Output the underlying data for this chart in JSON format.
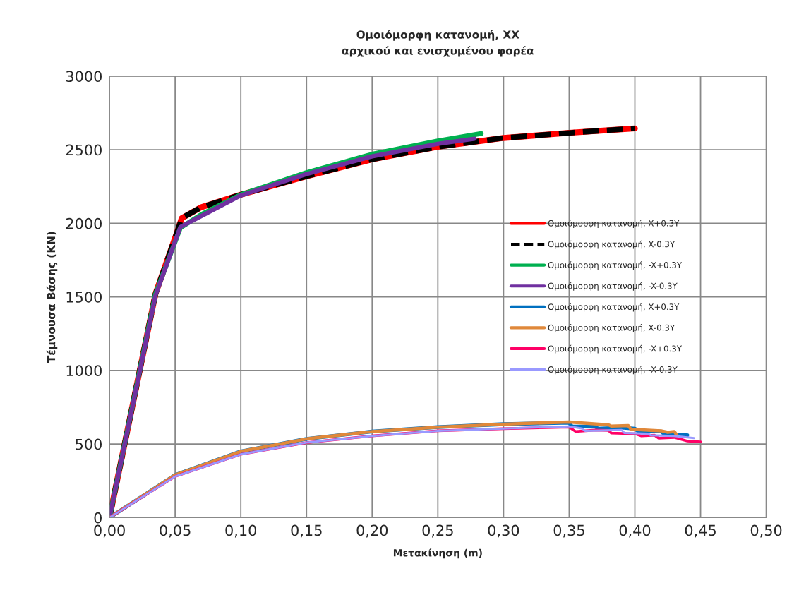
{
  "chart_data": {
    "type": "line",
    "title": "Ομοιόμορφη κατανομή, XX\nαρχικού και ενισχυμένου φορέα",
    "xlabel": "Μετακίνηση (m)",
    "ylabel": "Τέμνουσα Βάσης (KN)",
    "xlim": [
      0,
      0.5
    ],
    "xticks": [
      {
        "value": 0,
        "label": "0,00"
      },
      {
        "value": 0.05,
        "label": "0,05"
      },
      {
        "value": 0.1,
        "label": "0,10"
      },
      {
        "value": 0.15,
        "label": "0,15"
      },
      {
        "value": 0.2,
        "label": "0,20"
      },
      {
        "value": 0.25,
        "label": "0,25"
      },
      {
        "value": 0.3,
        "label": "0,30"
      },
      {
        "value": 0.35,
        "label": "0,35"
      },
      {
        "value": 0.4,
        "label": "0,40"
      },
      {
        "value": 0.45,
        "label": "0,45"
      },
      {
        "value": 0.5,
        "label": "0,50"
      }
    ],
    "ylim": [
      0,
      3000
    ],
    "yticks": [
      0,
      500,
      1000,
      1500,
      2000,
      2500,
      3000
    ],
    "grid": true,
    "legend": "right",
    "marker": "none",
    "series": [
      {
        "name": "Ομοιόμορφη κατανομή, X+0.3Y",
        "color": "#ff0000",
        "line_style": "solid",
        "x": [
          0,
          0.035,
          0.053,
          0.055,
          0.07,
          0.1,
          0.15,
          0.2,
          0.25,
          0.3,
          0.35,
          0.4
        ],
        "values": [
          0,
          1520,
          1980,
          2035,
          2110,
          2195,
          2320,
          2435,
          2520,
          2580,
          2615,
          2645
        ]
      },
      {
        "name": "Ομοιόμορφη κατανομή, X-0.3Y",
        "color": "#000000",
        "line_style": "dashed",
        "x": [
          0,
          0.035,
          0.053,
          0.055,
          0.07,
          0.1,
          0.15,
          0.2,
          0.25,
          0.3,
          0.35,
          0.4
        ],
        "values": [
          0,
          1520,
          1980,
          2035,
          2110,
          2195,
          2320,
          2435,
          2520,
          2580,
          2615,
          2645
        ]
      },
      {
        "name": "Ομοιόμορφη κατανομή, -X+0.3Y",
        "color": "#00b050",
        "line_style": "solid",
        "x": [
          0,
          0.035,
          0.054,
          0.07,
          0.1,
          0.15,
          0.2,
          0.25,
          0.283
        ],
        "values": [
          0,
          1520,
          1970,
          2060,
          2195,
          2345,
          2470,
          2560,
          2610
        ]
      },
      {
        "name": "Ομοιόμορφη κατανομή, -X-0.3Y",
        "color": "#7030a0",
        "line_style": "solid",
        "x": [
          0,
          0.035,
          0.054,
          0.07,
          0.1,
          0.15,
          0.2,
          0.25,
          0.278
        ],
        "values": [
          0,
          1510,
          1975,
          2050,
          2190,
          2335,
          2455,
          2540,
          2575
        ]
      },
      {
        "name": "Ομοιόμορφη κατανομή, X+0.3Y",
        "color": "#0070c0",
        "line_style": "solid",
        "x": [
          0,
          0.05,
          0.1,
          0.15,
          0.2,
          0.25,
          0.3,
          0.35,
          0.352,
          0.37,
          0.372,
          0.39,
          0.4,
          0.402,
          0.42,
          0.422,
          0.44
        ],
        "values": [
          0,
          290,
          450,
          535,
          585,
          615,
          635,
          645,
          620,
          618,
          605,
          612,
          605,
          590,
          585,
          570,
          560
        ]
      },
      {
        "name": "Ομοιόμορφη κατανομή, X-0.3Y",
        "color": "#e0883a",
        "line_style": "solid",
        "x": [
          0,
          0.05,
          0.1,
          0.15,
          0.2,
          0.25,
          0.3,
          0.35,
          0.38,
          0.382,
          0.395,
          0.397,
          0.42,
          0.425,
          0.43,
          0.432
        ],
        "values": [
          0,
          290,
          450,
          535,
          585,
          615,
          635,
          650,
          630,
          622,
          625,
          600,
          590,
          580,
          585,
          560
        ]
      },
      {
        "name": "Ομοιόμορφη κατανομή, -X+0.3Y",
        "color": "#ff0066",
        "line_style": "solid",
        "x": [
          0,
          0.05,
          0.1,
          0.15,
          0.2,
          0.25,
          0.3,
          0.35,
          0.355,
          0.37,
          0.38,
          0.382,
          0.4,
          0.405,
          0.415,
          0.418,
          0.43,
          0.44,
          0.45
        ],
        "values": [
          0,
          280,
          430,
          510,
          555,
          590,
          605,
          615,
          585,
          595,
          592,
          575,
          570,
          555,
          560,
          540,
          545,
          520,
          515
        ]
      },
      {
        "name": "Ομοιόμορφη κατανομή, -X-0.3Y",
        "color": "#9999ff",
        "line_style": "solid",
        "x": [
          0,
          0.05,
          0.1,
          0.15,
          0.2,
          0.25,
          0.3,
          0.35,
          0.36,
          0.362,
          0.39,
          0.392,
          0.41,
          0.412,
          0.43,
          0.445
        ],
        "values": [
          0,
          280,
          430,
          510,
          555,
          590,
          605,
          620,
          605,
          590,
          595,
          575,
          570,
          560,
          555,
          540
        ]
      }
    ]
  }
}
